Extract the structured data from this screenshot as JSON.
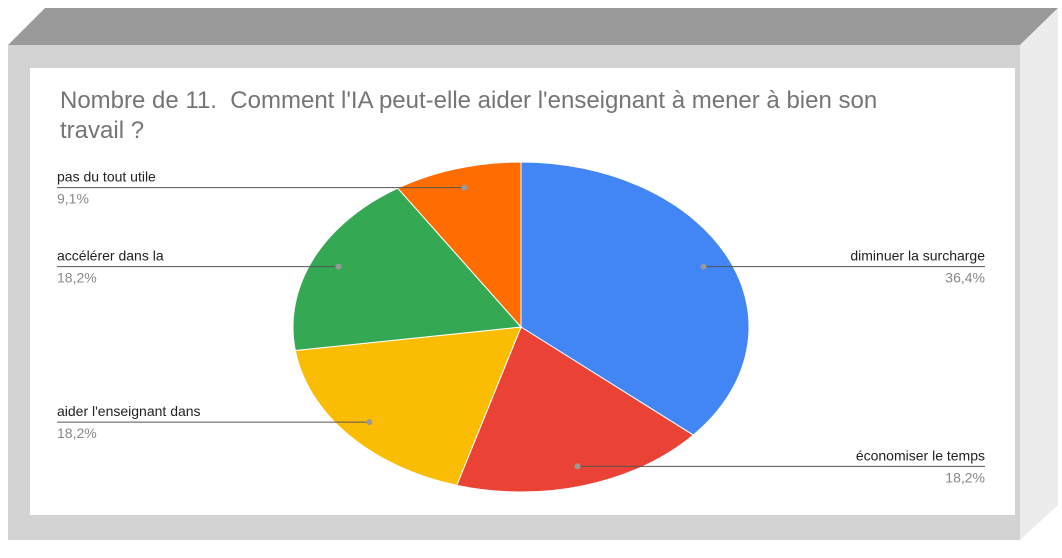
{
  "chart_data": {
    "type": "pie",
    "title": "Nombre de 11.  Comment l'IA peut-elle aider l'enseignant à mener à bien son travail ?",
    "categories": [
      "diminuer la surcharge",
      "économiser le temps",
      "aider l'enseignant dans",
      "accélérer dans la",
      "pas du tout utile"
    ],
    "values": [
      36.4,
      18.2,
      18.2,
      18.2,
      9.1
    ],
    "value_labels": [
      "36,4%",
      "18,2%",
      "18,2%",
      "18,2%",
      "9,1%"
    ],
    "colors": [
      "#4285f4",
      "#ea4335",
      "#fbbc04",
      "#34a853",
      "#ff6d01"
    ]
  }
}
